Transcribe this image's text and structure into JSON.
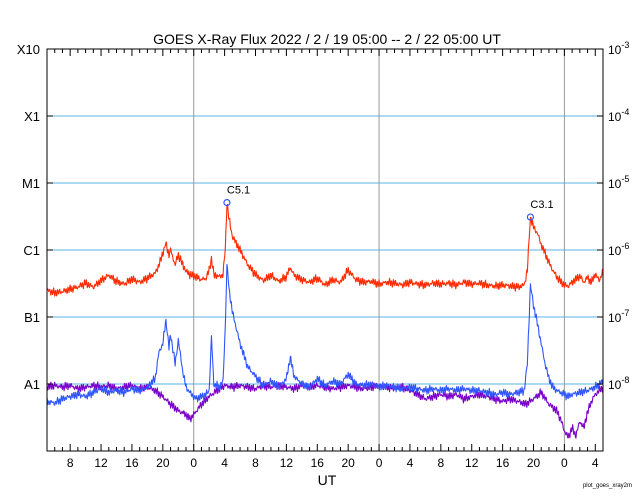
{
  "chart_data": {
    "type": "line",
    "title": "GOES X-Ray Flux   2022 /  2 / 19   05:00 --  2 / 22   05:00   UT",
    "xlabel": "UT",
    "x_range_hours": [
      0,
      72
    ],
    "x_ticks": [
      {
        "t": 3,
        "label": "8"
      },
      {
        "t": 7,
        "label": "12"
      },
      {
        "t": 11,
        "label": "16"
      },
      {
        "t": 15,
        "label": "20"
      },
      {
        "t": 19,
        "label": "0"
      },
      {
        "t": 23,
        "label": "4"
      },
      {
        "t": 27,
        "label": "8"
      },
      {
        "t": 31,
        "label": "12"
      },
      {
        "t": 35,
        "label": "16"
      },
      {
        "t": 39,
        "label": "20"
      },
      {
        "t": 43,
        "label": "0"
      },
      {
        "t": 47,
        "label": "4"
      },
      {
        "t": 51,
        "label": "8"
      },
      {
        "t": 55,
        "label": "12"
      },
      {
        "t": 59,
        "label": "16"
      },
      {
        "t": 63,
        "label": "20"
      },
      {
        "t": 67,
        "label": "0"
      },
      {
        "t": 71,
        "label": "4"
      }
    ],
    "day_boundaries_hours": [
      19,
      43,
      67
    ],
    "y_scale": "log",
    "y_range": [
      1e-09,
      0.001
    ],
    "left_class_labels": [
      {
        "value": 0.001,
        "label": "X10"
      },
      {
        "value": 0.0001,
        "label": "X1"
      },
      {
        "value": 1e-05,
        "label": "M1"
      },
      {
        "value": 1e-06,
        "label": "C1"
      },
      {
        "value": 1e-07,
        "label": "B1"
      },
      {
        "value": 1e-08,
        "label": "A1"
      }
    ],
    "right_tick_labels": [
      {
        "value": 0.001,
        "base": "10",
        "exp": "-3"
      },
      {
        "value": 0.0001,
        "base": "10",
        "exp": "-4"
      },
      {
        "value": 1e-05,
        "base": "10",
        "exp": "-5"
      },
      {
        "value": 1e-06,
        "base": "10",
        "exp": "-6"
      },
      {
        "value": 1e-07,
        "base": "10",
        "exp": "-7"
      },
      {
        "value": 1e-08,
        "base": "10",
        "exp": "-8"
      }
    ],
    "gridlines": [
      0.0001,
      1e-05,
      1e-06,
      1e-07,
      1e-08
    ],
    "series": [
      {
        "color": "#ff2a00",
        "points": [
          [
            0,
            2.5e-07
          ],
          [
            1,
            2.3e-07
          ],
          [
            2,
            2.4e-07
          ],
          [
            3,
            2.6e-07
          ],
          [
            4,
            2.8e-07
          ],
          [
            5,
            3.2e-07
          ],
          [
            6,
            2.8e-07
          ],
          [
            7,
            3.5e-07
          ],
          [
            8,
            4.2e-07
          ],
          [
            9,
            3.4e-07
          ],
          [
            10,
            3.1e-07
          ],
          [
            11,
            3.7e-07
          ],
          [
            12,
            3.3e-07
          ],
          [
            13,
            3.8e-07
          ],
          [
            14,
            4.5e-07
          ],
          [
            14.5,
            6e-07
          ],
          [
            15,
            9e-07
          ],
          [
            15.4,
            1.25e-06
          ],
          [
            15.8,
            8.5e-07
          ],
          [
            16,
            1e-06
          ],
          [
            16.6,
            6e-07
          ],
          [
            17,
            8.5e-07
          ],
          [
            17.6,
            6e-07
          ],
          [
            18,
            4.8e-07
          ],
          [
            18.7,
            4.2e-07
          ],
          [
            19.3,
            4e-07
          ],
          [
            20,
            3.6e-07
          ],
          [
            20.6,
            3.8e-07
          ],
          [
            21,
            5e-07
          ],
          [
            21.3,
            7.5e-07
          ],
          [
            21.6,
            4.3e-07
          ],
          [
            22.3,
            4e-07
          ],
          [
            22.8,
            4.3e-07
          ],
          [
            23.1,
            1.1e-06
          ],
          [
            23.3,
            5.1e-06
          ],
          [
            23.6,
            2.8e-06
          ],
          [
            24,
            1.6e-06
          ],
          [
            25,
            1e-06
          ],
          [
            26,
            6e-07
          ],
          [
            27,
            4.3e-07
          ],
          [
            28,
            3.5e-07
          ],
          [
            29,
            4.2e-07
          ],
          [
            30,
            3.4e-07
          ],
          [
            31,
            4e-07
          ],
          [
            31.5,
            5.5e-07
          ],
          [
            32,
            4.2e-07
          ],
          [
            33,
            3.6e-07
          ],
          [
            34,
            3.3e-07
          ],
          [
            35,
            3.8e-07
          ],
          [
            36,
            3e-07
          ],
          [
            37,
            3.6e-07
          ],
          [
            38,
            3.3e-07
          ],
          [
            39,
            5e-07
          ],
          [
            40,
            3.6e-07
          ],
          [
            41,
            3.3e-07
          ],
          [
            42,
            3.4e-07
          ],
          [
            43,
            3.1e-07
          ],
          [
            44,
            3.3e-07
          ],
          [
            45,
            3.2e-07
          ],
          [
            46,
            3e-07
          ],
          [
            47,
            3.3e-07
          ],
          [
            48,
            3.1e-07
          ],
          [
            49,
            3e-07
          ],
          [
            50,
            3.2e-07
          ],
          [
            51,
            3.1e-07
          ],
          [
            52,
            3.2e-07
          ],
          [
            53,
            3e-07
          ],
          [
            54,
            3.3e-07
          ],
          [
            55,
            3.1e-07
          ],
          [
            56,
            3.2e-07
          ],
          [
            57,
            3e-07
          ],
          [
            58,
            2.9e-07
          ],
          [
            59,
            3e-07
          ],
          [
            60,
            2.9e-07
          ],
          [
            61,
            2.8e-07
          ],
          [
            61.8,
            3e-07
          ],
          [
            62.2,
            5e-07
          ],
          [
            62.6,
            3.1e-06
          ],
          [
            63,
            2.2e-06
          ],
          [
            63.5,
            1.8e-06
          ],
          [
            64,
            1.2e-06
          ],
          [
            64.5,
            9e-07
          ],
          [
            65,
            6.5e-07
          ],
          [
            65.5,
            5e-07
          ],
          [
            66,
            4e-07
          ],
          [
            66.5,
            3.4e-07
          ],
          [
            67,
            3e-07
          ],
          [
            67.5,
            2.9e-07
          ],
          [
            68,
            3.3e-07
          ],
          [
            69,
            4.1e-07
          ],
          [
            69.5,
            3.3e-07
          ],
          [
            70,
            3.9e-07
          ],
          [
            70.5,
            3.3e-07
          ],
          [
            71,
            4.4e-07
          ],
          [
            71.5,
            3.5e-07
          ],
          [
            72,
            4.8e-07
          ]
        ]
      },
      {
        "color": "#2f55ff",
        "points": [
          [
            0,
            5.5e-09
          ],
          [
            1,
            5.2e-09
          ],
          [
            2,
            6e-09
          ],
          [
            3,
            6.5e-09
          ],
          [
            4,
            7e-09
          ],
          [
            5,
            6.5e-09
          ],
          [
            6,
            7.5e-09
          ],
          [
            7,
            8.5e-09
          ],
          [
            8,
            7.5e-09
          ],
          [
            9,
            8e-09
          ],
          [
            10,
            7.5e-09
          ],
          [
            11,
            8.5e-09
          ],
          [
            12,
            8e-09
          ],
          [
            13,
            9e-09
          ],
          [
            14,
            1.2e-08
          ],
          [
            14.5,
            3e-08
          ],
          [
            15,
            4e-08
          ],
          [
            15.4,
            9e-08
          ],
          [
            15.8,
            3.5e-08
          ],
          [
            16,
            5.5e-08
          ],
          [
            16.6,
            2e-08
          ],
          [
            17,
            4.5e-08
          ],
          [
            17.6,
            1.5e-08
          ],
          [
            18,
            9e-09
          ],
          [
            18.7,
            7e-09
          ],
          [
            19.3,
            6e-09
          ],
          [
            20,
            6.5e-09
          ],
          [
            20.6,
            7e-09
          ],
          [
            21,
            8e-09
          ],
          [
            21.3,
            5e-08
          ],
          [
            21.6,
            1e-08
          ],
          [
            22.3,
            9e-09
          ],
          [
            22.8,
            1.1e-08
          ],
          [
            23.1,
            8e-08
          ],
          [
            23.3,
            6e-07
          ],
          [
            23.6,
            2.5e-07
          ],
          [
            24,
            1.2e-07
          ],
          [
            25,
            4e-08
          ],
          [
            26,
            1.8e-08
          ],
          [
            27,
            1.3e-08
          ],
          [
            28,
            9.5e-09
          ],
          [
            29,
            1.1e-08
          ],
          [
            30,
            9e-09
          ],
          [
            31,
            1.2e-08
          ],
          [
            31.5,
            2.5e-08
          ],
          [
            32,
            1.3e-08
          ],
          [
            33,
            1e-08
          ],
          [
            34,
            9e-09
          ],
          [
            35,
            1.2e-08
          ],
          [
            36,
            9.5e-09
          ],
          [
            37,
            1.1e-08
          ],
          [
            38,
            1e-08
          ],
          [
            39,
            1.4e-08
          ],
          [
            40,
            1e-08
          ],
          [
            41,
            9.5e-09
          ],
          [
            42,
            1e-08
          ],
          [
            43,
            9e-09
          ],
          [
            44,
            9.5e-09
          ],
          [
            45,
            9e-09
          ],
          [
            46,
            8.5e-09
          ],
          [
            47,
            9e-09
          ],
          [
            48,
            8.5e-09
          ],
          [
            49,
            8e-09
          ],
          [
            50,
            8.5e-09
          ],
          [
            51,
            8e-09
          ],
          [
            52,
            8.5e-09
          ],
          [
            53,
            8e-09
          ],
          [
            54,
            8.5e-09
          ],
          [
            55,
            8e-09
          ],
          [
            56,
            8e-09
          ],
          [
            57,
            7.5e-09
          ],
          [
            58,
            7e-09
          ],
          [
            59,
            7.5e-09
          ],
          [
            60,
            7e-09
          ],
          [
            61,
            7.5e-09
          ],
          [
            61.8,
            8e-09
          ],
          [
            62.2,
            2e-08
          ],
          [
            62.6,
            3e-07
          ],
          [
            63,
            1.5e-07
          ],
          [
            63.5,
            8e-08
          ],
          [
            64,
            4e-08
          ],
          [
            64.5,
            2e-08
          ],
          [
            65,
            1.2e-08
          ],
          [
            65.5,
            9e-09
          ],
          [
            66,
            8e-09
          ],
          [
            66.5,
            7.5e-09
          ],
          [
            67,
            7e-09
          ],
          [
            67.5,
            6.5e-09
          ],
          [
            68,
            7e-09
          ],
          [
            69,
            7.5e-09
          ],
          [
            70,
            8e-09
          ],
          [
            71,
            9e-09
          ],
          [
            72,
            1.1e-08
          ]
        ]
      },
      {
        "color": "#7a00c8",
        "points": [
          [
            0,
            9e-09
          ],
          [
            1,
            9.5e-09
          ],
          [
            2,
            9e-09
          ],
          [
            3,
            9.5e-09
          ],
          [
            4,
            8.5e-09
          ],
          [
            5,
            9e-09
          ],
          [
            6,
            9.5e-09
          ],
          [
            7,
            9e-09
          ],
          [
            8,
            9.5e-09
          ],
          [
            9,
            8.5e-09
          ],
          [
            10,
            9e-09
          ],
          [
            11,
            9.5e-09
          ],
          [
            12,
            8.5e-09
          ],
          [
            13,
            9e-09
          ],
          [
            14,
            8e-09
          ],
          [
            15,
            6.5e-09
          ],
          [
            16,
            5e-09
          ],
          [
            17,
            4e-09
          ],
          [
            18,
            3.5e-09
          ],
          [
            18.5,
            3e-09
          ],
          [
            19,
            3.5e-09
          ],
          [
            20,
            5e-09
          ],
          [
            21,
            6.5e-09
          ],
          [
            22,
            8e-09
          ],
          [
            23,
            9.5e-09
          ],
          [
            24,
            9e-09
          ],
          [
            25,
            9.5e-09
          ],
          [
            26,
            9e-09
          ],
          [
            27,
            8.5e-09
          ],
          [
            28,
            9.5e-09
          ],
          [
            29,
            9e-09
          ],
          [
            30,
            9.5e-09
          ],
          [
            31,
            9e-09
          ],
          [
            32,
            8.5e-09
          ],
          [
            33,
            9.5e-09
          ],
          [
            34,
            9e-09
          ],
          [
            35,
            9.5e-09
          ],
          [
            36,
            9e-09
          ],
          [
            37,
            8.5e-09
          ],
          [
            38,
            9e-09
          ],
          [
            39,
            9.5e-09
          ],
          [
            40,
            9e-09
          ],
          [
            41,
            8.5e-09
          ],
          [
            42,
            9e-09
          ],
          [
            43,
            9.5e-09
          ],
          [
            44,
            9e-09
          ],
          [
            45,
            8.5e-09
          ],
          [
            46,
            9e-09
          ],
          [
            47,
            8e-09
          ],
          [
            48,
            7e-09
          ],
          [
            49,
            6e-09
          ],
          [
            50,
            6.5e-09
          ],
          [
            51,
            7e-09
          ],
          [
            52,
            6.5e-09
          ],
          [
            53,
            7e-09
          ],
          [
            54,
            6e-09
          ],
          [
            55,
            6.5e-09
          ],
          [
            56,
            7e-09
          ],
          [
            57,
            6.5e-09
          ],
          [
            58,
            6e-09
          ],
          [
            59,
            5.5e-09
          ],
          [
            60,
            6e-09
          ],
          [
            61,
            5.5e-09
          ],
          [
            62,
            5e-09
          ],
          [
            63,
            6e-09
          ],
          [
            64,
            7.5e-09
          ],
          [
            65,
            5e-09
          ],
          [
            66,
            4e-09
          ],
          [
            66.5,
            3e-09
          ],
          [
            67,
            2e-09
          ],
          [
            67.5,
            1.6e-09
          ],
          [
            68,
            2.2e-09
          ],
          [
            68.5,
            1.7e-09
          ],
          [
            69,
            2.8e-09
          ],
          [
            69.5,
            2.2e-09
          ],
          [
            70,
            3.8e-09
          ],
          [
            70.5,
            5.5e-09
          ],
          [
            71,
            7e-09
          ],
          [
            72,
            9e-09
          ]
        ]
      }
    ],
    "annotations": [
      {
        "label": "C5.1",
        "x": 23.3,
        "y": 5.1e-06
      },
      {
        "label": "C3.1",
        "x": 62.6,
        "y": 3.1e-06
      }
    ],
    "credit": "plot_goes_xray2m"
  }
}
